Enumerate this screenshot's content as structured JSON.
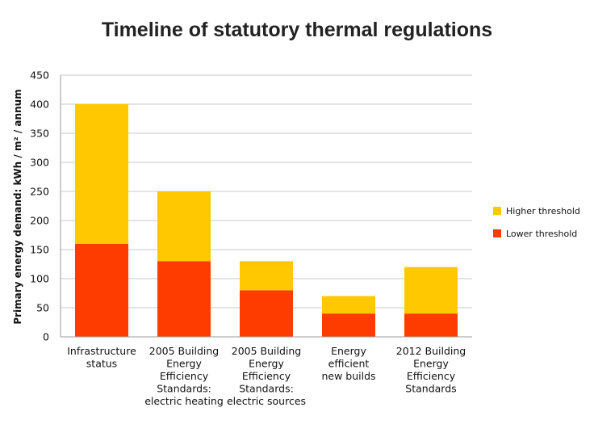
{
  "chart_data": {
    "type": "bar",
    "stacked": true,
    "title": "Timeline of statutory thermal regulations",
    "xlabel": "",
    "ylabel": "Primary energy demand: kWh / m² / annum",
    "ylim": [
      0,
      450
    ],
    "yticks": [
      "0",
      "50",
      "100",
      "150",
      "200",
      "250",
      "300",
      "350",
      "400",
      "450"
    ],
    "grid": true,
    "legend_position": "right",
    "categories": [
      [
        "Infrastructure",
        "status"
      ],
      [
        "2005 Building",
        "Energy",
        "Efficiency",
        "Standards:",
        "electric heating"
      ],
      [
        "2005 Building",
        "Energy",
        "Efficiency",
        "Standards:",
        "electric sources"
      ],
      [
        "Energy",
        "efficient",
        "new builds"
      ],
      [
        "2012 Building",
        "Energy",
        "Efficiency",
        "Standards"
      ]
    ],
    "series": [
      {
        "name": "Lower threshold",
        "color": "#ff3c00",
        "values": [
          160,
          130,
          80,
          40,
          40
        ]
      },
      {
        "name": "Higher threshold",
        "color": "#ffc800",
        "values": [
          240,
          120,
          50,
          30,
          80
        ]
      }
    ],
    "legend": [
      "Higher threshold",
      "Lower threshold"
    ]
  }
}
